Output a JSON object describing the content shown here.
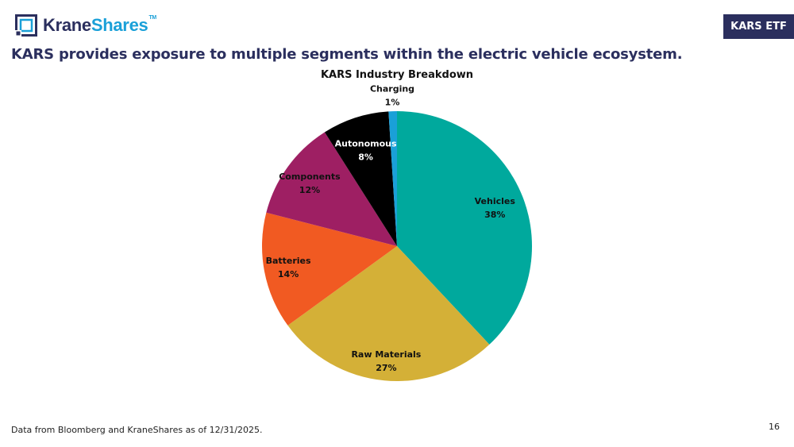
{
  "header": {
    "logo_text_a": "Krane",
    "logo_text_b": "Shares",
    "logo_tm": "TM",
    "badge": "KARS ETF",
    "headline": "KARS provides exposure to multiple segments within the electric vehicle ecosystem."
  },
  "colors": {
    "navy": "#2b2f5e",
    "vehicles": "#00a99d",
    "raw_materials": "#d4b037",
    "batteries": "#f15a22",
    "components": "#9e1f63",
    "autonomous": "#000000",
    "charging": "#1aa0d8"
  },
  "chart_data": {
    "type": "pie",
    "title": "KARS Industry Breakdown",
    "slices": [
      {
        "label": "Vehicles",
        "value": 38,
        "display": "38%",
        "color": "#00a99d"
      },
      {
        "label": "Raw Materials",
        "value": 27,
        "display": "27%",
        "color": "#d4b037"
      },
      {
        "label": "Batteries",
        "value": 14,
        "display": "14%",
        "color": "#f15a22"
      },
      {
        "label": "Components",
        "value": 12,
        "display": "12%",
        "color": "#9e1f63"
      },
      {
        "label": "Autonomous",
        "value": 8,
        "display": "8%",
        "color": "#000000"
      },
      {
        "label": "Charging",
        "value": 1,
        "display": "1%",
        "color": "#1aa0d8"
      }
    ]
  },
  "footer": {
    "source": "Data from Bloomberg and KraneShares as of 12/31/2025.",
    "page": "16"
  }
}
